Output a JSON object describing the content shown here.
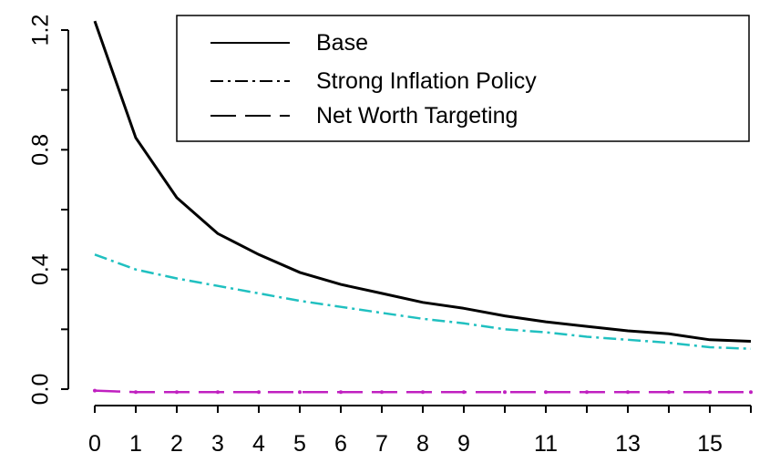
{
  "chart_data": {
    "type": "line",
    "x": [
      0,
      1,
      2,
      3,
      4,
      5,
      6,
      7,
      8,
      9,
      10,
      11,
      12,
      13,
      14,
      15,
      16
    ],
    "x_tick_values": [
      0,
      1,
      2,
      3,
      4,
      5,
      6,
      7,
      8,
      9,
      11,
      13,
      15
    ],
    "x_tick_labels": [
      "0",
      "1",
      "2",
      "3",
      "4",
      "5",
      "6",
      "7",
      "8",
      "9",
      "11",
      "13",
      "15"
    ],
    "y_tick_values": [
      0.0,
      0.4,
      0.8,
      1.2
    ],
    "y_tick_labels": [
      "0.0",
      "0.4",
      "0.8",
      "1.2"
    ],
    "ylim": [
      -0.02,
      1.25
    ],
    "grid": false,
    "legend_position": "top-right",
    "series": [
      {
        "name": "Base",
        "color": "#000000",
        "dash": "solid",
        "values": [
          1.23,
          0.84,
          0.64,
          0.52,
          0.45,
          0.39,
          0.35,
          0.32,
          0.29,
          0.27,
          0.245,
          0.225,
          0.21,
          0.195,
          0.185,
          0.165,
          0.16
        ]
      },
      {
        "name": "Strong Inflation Policy",
        "color": "#20c0c0",
        "dash": "dashdot",
        "values": [
          0.45,
          0.4,
          0.37,
          0.345,
          0.32,
          0.295,
          0.275,
          0.255,
          0.235,
          0.22,
          0.2,
          0.19,
          0.175,
          0.165,
          0.155,
          0.14,
          0.135
        ]
      },
      {
        "name": "Net Worth Targeting",
        "color": "#c020c0",
        "dash": "longdash",
        "values": [
          -0.005,
          -0.01,
          -0.01,
          -0.01,
          -0.01,
          -0.01,
          -0.01,
          -0.01,
          -0.01,
          -0.01,
          -0.01,
          -0.01,
          -0.01,
          -0.01,
          -0.01,
          -0.01,
          -0.01
        ]
      }
    ],
    "legend": {
      "entries": [
        "Base",
        "Strong Inflation Policy",
        "Net Worth Targeting"
      ],
      "line_colors": [
        "#000000",
        "#000000",
        "#000000"
      ],
      "line_dashes": [
        "solid",
        "dashdot",
        "longdash"
      ]
    }
  }
}
